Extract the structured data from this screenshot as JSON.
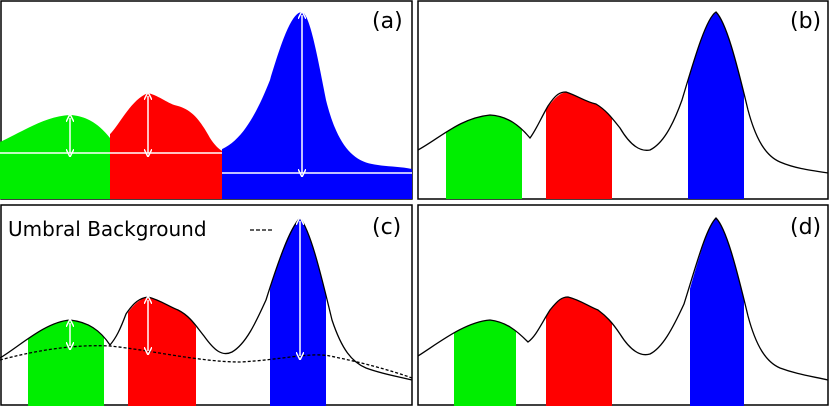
{
  "panels": [
    {
      "label": "(a)"
    },
    {
      "label": "(b)"
    },
    {
      "label": "(c)",
      "annotation": "Umbral Background"
    },
    {
      "label": "(d)"
    }
  ],
  "colors": {
    "green": "#00ee00",
    "red": "#ff0000",
    "blue": "#0000ff",
    "curve": "#000000",
    "arrow": "#ffffff",
    "frame": "#000000"
  }
}
